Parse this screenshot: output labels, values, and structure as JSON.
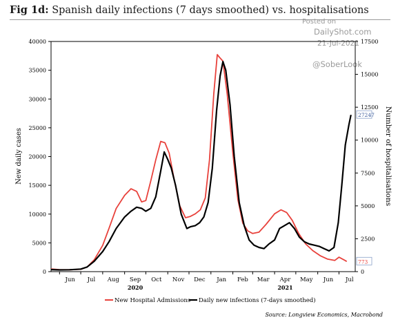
{
  "title": {
    "prefix": "Fig 1d:",
    "text": "Spanish daily infections (7 days smoothed) vs. hospitalisations"
  },
  "watermark": {
    "posted": "Posted on",
    "site": "DailyShot.com",
    "date": "21-Jul-2021",
    "handle": "@SoberLook"
  },
  "source": "Source: Longview Economics, Macrobond",
  "colors": {
    "infections": "#000000",
    "hospital": "#e8413b",
    "axis": "#000000",
    "marker_border": "#8aa0c8"
  },
  "chart_data": {
    "type": "line",
    "title": "Spanish daily infections (7 days smoothed) vs. hospitalisations",
    "ylabel": "New daily cases",
    "y2label": "Number of hospitalisations",
    "ylim": [
      0,
      40000
    ],
    "y2lim": [
      0,
      17500
    ],
    "yticks": [
      "0",
      "5000",
      "10000",
      "15000",
      "20000",
      "25000",
      "30000",
      "35000",
      "40000"
    ],
    "y2ticks": [
      "0",
      "2500",
      "5000",
      "7500",
      "10000",
      "12500",
      "15000",
      "17500"
    ],
    "xticks": [
      "Jun",
      "Jul",
      "Aug",
      "Sep",
      "Oct",
      "Nov",
      "Dec",
      "Jan",
      "Feb",
      "Mar",
      "Apr",
      "May",
      "Jun",
      "Jul"
    ],
    "year_labels": [
      {
        "label": "2020",
        "month": "Sep"
      },
      {
        "label": "2021",
        "month": "Apr"
      }
    ],
    "xlim": [
      "2020-05-20",
      "2021-07-24"
    ],
    "legend": "bottom",
    "grid": false,
    "end_labels": {
      "infections": "27247",
      "hospital": "773"
    },
    "series": [
      {
        "name": "Daily new infections (7-days smoothed)",
        "axis": "left",
        "points": [
          [
            "2020-05-20",
            350
          ],
          [
            "2020-06-01",
            300
          ],
          [
            "2020-06-15",
            320
          ],
          [
            "2020-07-01",
            450
          ],
          [
            "2020-07-10",
            800
          ],
          [
            "2020-07-20",
            1800
          ],
          [
            "2020-08-01",
            3500
          ],
          [
            "2020-08-10",
            5200
          ],
          [
            "2020-08-20",
            7500
          ],
          [
            "2020-09-01",
            9500
          ],
          [
            "2020-09-10",
            10500
          ],
          [
            "2020-09-18",
            11200
          ],
          [
            "2020-09-25",
            11000
          ],
          [
            "2020-10-01",
            10500
          ],
          [
            "2020-10-08",
            11000
          ],
          [
            "2020-10-15",
            13000
          ],
          [
            "2020-10-22",
            17500
          ],
          [
            "2020-10-27",
            20800
          ],
          [
            "2020-11-01",
            19500
          ],
          [
            "2020-11-06",
            18000
          ],
          [
            "2020-11-12",
            15000
          ],
          [
            "2020-11-20",
            10000
          ],
          [
            "2020-11-28",
            7500
          ],
          [
            "2020-12-03",
            7800
          ],
          [
            "2020-12-10",
            8000
          ],
          [
            "2020-12-16",
            8500
          ],
          [
            "2020-12-22",
            9500
          ],
          [
            "2020-12-28",
            12000
          ],
          [
            "2021-01-03",
            18000
          ],
          [
            "2021-01-09",
            28000
          ],
          [
            "2021-01-14",
            34000
          ],
          [
            "2021-01-18",
            36500
          ],
          [
            "2021-01-22",
            35000
          ],
          [
            "2021-01-28",
            29000
          ],
          [
            "2021-02-03",
            20000
          ],
          [
            "2021-02-10",
            12000
          ],
          [
            "2021-02-17",
            8000
          ],
          [
            "2021-02-24",
            5500
          ],
          [
            "2021-03-03",
            4600
          ],
          [
            "2021-03-10",
            4200
          ],
          [
            "2021-03-17",
            4000
          ],
          [
            "2021-03-24",
            4800
          ],
          [
            "2021-04-01",
            5500
          ],
          [
            "2021-04-08",
            7500
          ],
          [
            "2021-04-15",
            8000
          ],
          [
            "2021-04-22",
            8500
          ],
          [
            "2021-04-29",
            7500
          ],
          [
            "2021-05-06",
            6000
          ],
          [
            "2021-05-13",
            5200
          ],
          [
            "2021-05-20",
            4800
          ],
          [
            "2021-05-27",
            4600
          ],
          [
            "2021-06-03",
            4400
          ],
          [
            "2021-06-10",
            4000
          ],
          [
            "2021-06-17",
            3600
          ],
          [
            "2021-06-24",
            4200
          ],
          [
            "2021-06-30",
            8500
          ],
          [
            "2021-07-05",
            15000
          ],
          [
            "2021-07-10",
            22000
          ],
          [
            "2021-07-15",
            25500
          ],
          [
            "2021-07-18",
            27247
          ]
        ]
      },
      {
        "name": "New Hospital Admissions",
        "axis": "right",
        "points": [
          [
            "2020-05-20",
            200
          ],
          [
            "2020-06-01",
            150
          ],
          [
            "2020-06-15",
            140
          ],
          [
            "2020-07-01",
            180
          ],
          [
            "2020-07-10",
            350
          ],
          [
            "2020-07-20",
            900
          ],
          [
            "2020-08-01",
            2000
          ],
          [
            "2020-08-10",
            3300
          ],
          [
            "2020-08-20",
            4800
          ],
          [
            "2020-09-01",
            5800
          ],
          [
            "2020-09-10",
            6300
          ],
          [
            "2020-09-18",
            6100
          ],
          [
            "2020-09-25",
            5300
          ],
          [
            "2020-10-01",
            5400
          ],
          [
            "2020-10-08",
            6900
          ],
          [
            "2020-10-15",
            8500
          ],
          [
            "2020-10-22",
            9900
          ],
          [
            "2020-10-28",
            9800
          ],
          [
            "2020-11-03",
            9000
          ],
          [
            "2020-11-10",
            7000
          ],
          [
            "2020-11-18",
            5000
          ],
          [
            "2020-11-26",
            4100
          ],
          [
            "2020-12-03",
            4200
          ],
          [
            "2020-12-10",
            4400
          ],
          [
            "2020-12-17",
            4700
          ],
          [
            "2020-12-24",
            5600
          ],
          [
            "2020-12-30",
            8500
          ],
          [
            "2021-01-05",
            13500
          ],
          [
            "2021-01-10",
            16500
          ],
          [
            "2021-01-13",
            16300
          ],
          [
            "2021-01-18",
            16000
          ],
          [
            "2021-01-24",
            13500
          ],
          [
            "2021-02-01",
            9000
          ],
          [
            "2021-02-08",
            5500
          ],
          [
            "2021-02-15",
            3700
          ],
          [
            "2021-02-22",
            3100
          ],
          [
            "2021-03-01",
            2900
          ],
          [
            "2021-03-10",
            3000
          ],
          [
            "2021-03-20",
            3600
          ],
          [
            "2021-04-01",
            4400
          ],
          [
            "2021-04-10",
            4700
          ],
          [
            "2021-04-18",
            4500
          ],
          [
            "2021-04-26",
            3900
          ],
          [
            "2021-05-05",
            2900
          ],
          [
            "2021-05-15",
            2100
          ],
          [
            "2021-05-25",
            1600
          ],
          [
            "2021-06-05",
            1200
          ],
          [
            "2021-06-15",
            950
          ],
          [
            "2021-06-25",
            850
          ],
          [
            "2021-07-01",
            1100
          ],
          [
            "2021-07-08",
            900
          ],
          [
            "2021-07-12",
            773
          ]
        ]
      }
    ]
  }
}
